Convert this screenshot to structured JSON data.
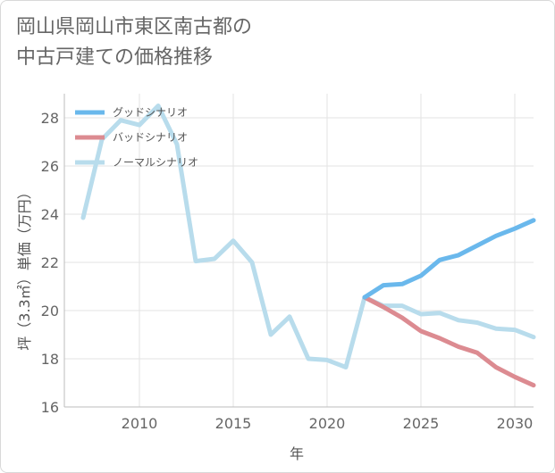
{
  "title_lines": [
    "岡山県岡山市東区南古都の",
    "中古戸建ての価格推移"
  ],
  "chart_data": {
    "type": "line",
    "xlabel": "年",
    "ylabel": "坪（3.3㎡）単価（万円）",
    "xlim": [
      2006,
      2031
    ],
    "ylim": [
      16,
      29
    ],
    "x_ticks": [
      2010,
      2015,
      2020,
      2025,
      2030
    ],
    "y_ticks": [
      16,
      18,
      20,
      22,
      24,
      26,
      28
    ],
    "grid": true,
    "legend_position": "top-left",
    "series": [
      {
        "name": "グッドシナリオ",
        "color": "#6ab8ec",
        "x": [
          2022,
          2023,
          2024,
          2025,
          2026,
          2027,
          2028,
          2029,
          2030,
          2031
        ],
        "y": [
          20.55,
          21.05,
          21.1,
          21.45,
          22.1,
          22.3,
          22.7,
          23.1,
          23.4,
          23.75
        ]
      },
      {
        "name": "バッドシナリオ",
        "color": "#dc8b91",
        "x": [
          2022,
          2023,
          2024,
          2025,
          2026,
          2027,
          2028,
          2029,
          2030,
          2031
        ],
        "y": [
          20.55,
          20.15,
          19.7,
          19.15,
          18.85,
          18.5,
          18.25,
          17.65,
          17.25,
          16.9
        ]
      },
      {
        "name": "ノーマルシナリオ",
        "color": "#b8dcec",
        "x": [
          2007,
          2008,
          2009,
          2010,
          2011,
          2012,
          2013,
          2014,
          2015,
          2016,
          2017,
          2018,
          2019,
          2020,
          2021,
          2022,
          2023,
          2024,
          2025,
          2026,
          2027,
          2028,
          2029,
          2030,
          2031
        ],
        "y": [
          23.85,
          27.1,
          27.9,
          27.7,
          28.5,
          26.9,
          22.05,
          22.15,
          22.9,
          22.0,
          19.0,
          19.75,
          18.0,
          17.95,
          17.65,
          20.55,
          20.2,
          20.2,
          19.85,
          19.9,
          19.6,
          19.5,
          19.25,
          19.2,
          18.9
        ]
      }
    ]
  }
}
